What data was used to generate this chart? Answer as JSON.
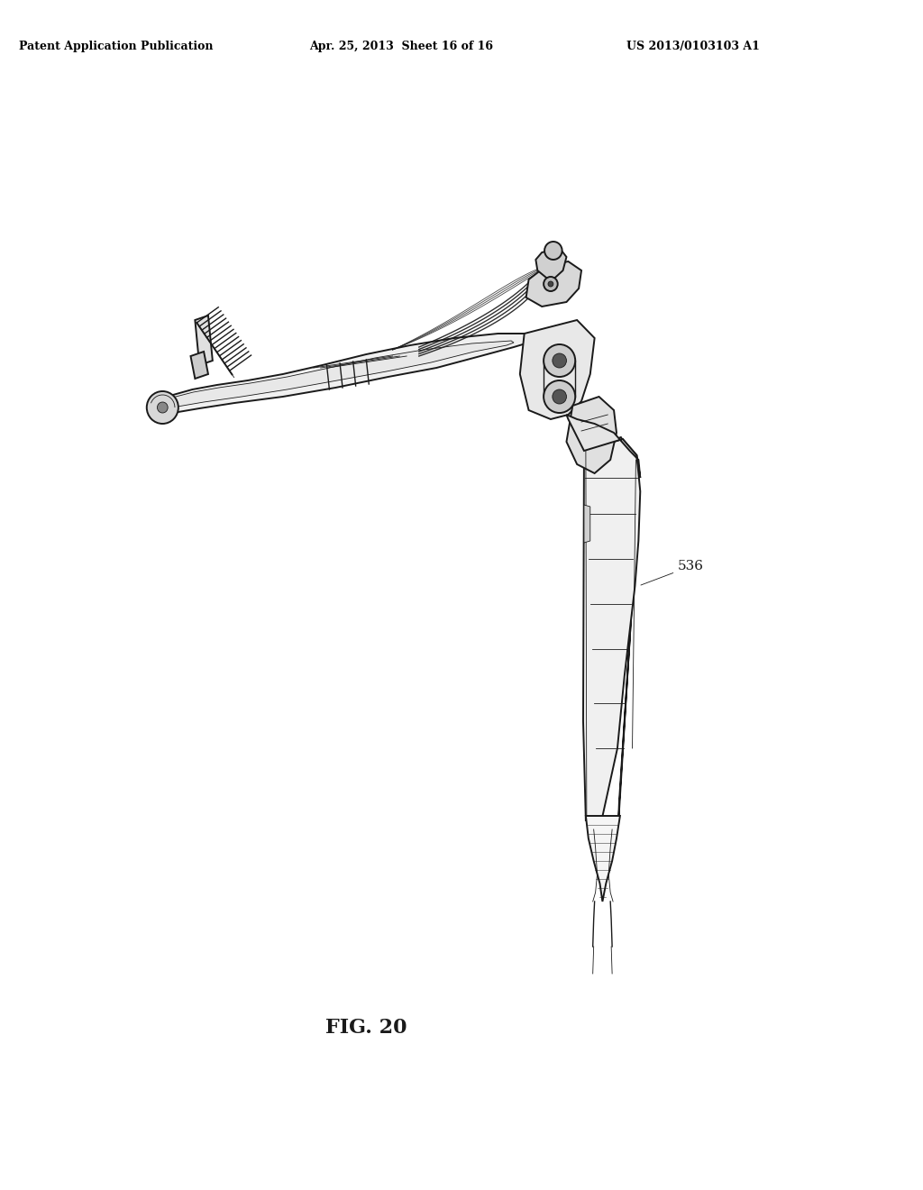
{
  "background_color": "#ffffff",
  "header_left": "Patent Application Publication",
  "header_center": "Apr. 25, 2013  Sheet 16 of 16",
  "header_right": "US 2013/0103103 A1",
  "figure_label": "FIG. 20",
  "label_536": "536",
  "line_color": "#1a1a1a",
  "fill_light": "#f5f5f5",
  "fill_mid": "#e0e0e0",
  "fill_dark": "#aaaaaa"
}
